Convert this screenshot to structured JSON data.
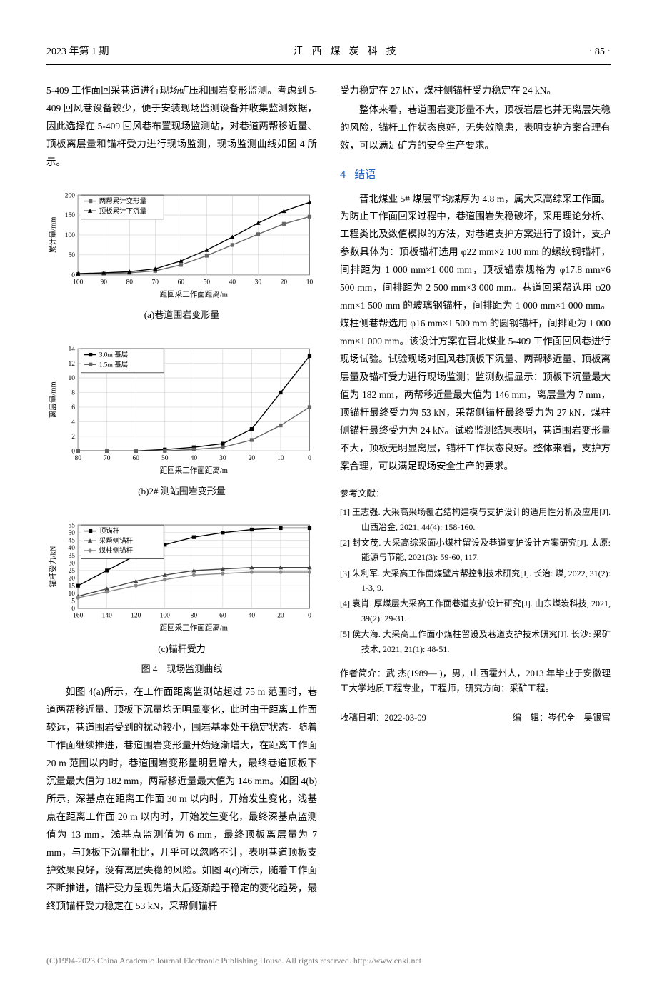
{
  "header": {
    "left": "2023 年第 1 期",
    "center": "江西煤炭科技",
    "right": "· 85 ·"
  },
  "col1": {
    "p1": "5-409 工作面回采巷道进行现场矿压和围岩变形监测。考虑到 5-409 回风巷设备较少，便于安装现场监测设备并收集监测数据，因此选择在 5-409 回风巷布置现场监测站，对巷道两帮移近量、顶板离层量和锚杆受力进行现场监测，现场监测曲线如图 4 所示。",
    "chart_a": {
      "type": "line",
      "title": "(a)巷道围岩变形量",
      "xlabel": "距回采工作面距离/m",
      "ylabel": "累计量/mm",
      "xlim": [
        100,
        10
      ],
      "ylim": [
        0,
        200
      ],
      "ytick_step": 50,
      "xticks": [
        100,
        90,
        80,
        70,
        60,
        50,
        40,
        30,
        20,
        10
      ],
      "legend": [
        "两帮累计变形量",
        "顶板累计下沉量"
      ],
      "series": [
        {
          "name": "两帮累计变形量",
          "color": "#666666",
          "marker": "square",
          "x": [
            100,
            90,
            80,
            70,
            60,
            50,
            40,
            30,
            20,
            10
          ],
          "y": [
            2,
            3,
            5,
            10,
            25,
            48,
            75,
            102,
            128,
            146
          ]
        },
        {
          "name": "顶板累计下沉量",
          "color": "#000000",
          "marker": "triangle",
          "x": [
            100,
            90,
            80,
            70,
            60,
            50,
            40,
            30,
            20,
            10
          ],
          "y": [
            3,
            5,
            8,
            15,
            35,
            62,
            95,
            130,
            160,
            182
          ]
        }
      ],
      "grid_color": "#cccccc",
      "background": "#ffffff",
      "axis_fontsize": 9,
      "label_fontsize": 10
    },
    "chart_b": {
      "type": "line",
      "title": "(b)2# 测站围岩变形量",
      "xlabel": "距回采工作面距离/m",
      "ylabel": "离层量/mm",
      "xlim": [
        80,
        0
      ],
      "ylim": [
        0,
        14
      ],
      "ytick_step": 2,
      "xticks": [
        80,
        70,
        60,
        50,
        40,
        30,
        20,
        10,
        0
      ],
      "legend": [
        "3.0m 基层",
        "1.5m 基层"
      ],
      "series": [
        {
          "name": "3.0m 基层",
          "color": "#000000",
          "marker": "square",
          "x": [
            80,
            70,
            60,
            50,
            40,
            30,
            20,
            10,
            0
          ],
          "y": [
            0,
            0,
            0,
            0.2,
            0.5,
            1,
            3,
            8,
            13
          ]
        },
        {
          "name": "1.5m 基层",
          "color": "#666666",
          "marker": "square",
          "x": [
            80,
            70,
            60,
            50,
            40,
            30,
            20,
            10,
            0
          ],
          "y": [
            0,
            0,
            0,
            0,
            0.2,
            0.5,
            1.5,
            3.5,
            6
          ]
        }
      ],
      "grid_color": "#cccccc",
      "background": "#ffffff",
      "axis_fontsize": 9,
      "label_fontsize": 10
    },
    "chart_c": {
      "type": "line",
      "title": "(c)锚杆受力",
      "xlabel": "距回采工作面距离/m",
      "ylabel": "锚杆受力/kN",
      "xlim": [
        160,
        0
      ],
      "ylim": [
        0,
        55
      ],
      "ytick_step": 5,
      "xticks": [
        160,
        140,
        120,
        100,
        80,
        60,
        40,
        20,
        0
      ],
      "legend": [
        "顶锚杆",
        "采帮侧锚杆",
        "煤柱侧锚杆"
      ],
      "series": [
        {
          "name": "顶锚杆",
          "color": "#000000",
          "marker": "square",
          "x": [
            160,
            140,
            120,
            100,
            80,
            60,
            40,
            20,
            0
          ],
          "y": [
            15,
            25,
            35,
            42,
            47,
            50,
            52,
            53,
            53
          ]
        },
        {
          "name": "采帮侧锚杆",
          "color": "#444444",
          "marker": "triangle",
          "x": [
            160,
            140,
            120,
            100,
            80,
            60,
            40,
            20,
            0
          ],
          "y": [
            8,
            13,
            18,
            22,
            25,
            26,
            27,
            27,
            27
          ]
        },
        {
          "name": "煤柱侧锚杆",
          "color": "#888888",
          "marker": "circle",
          "x": [
            160,
            140,
            120,
            100,
            80,
            60,
            40,
            20,
            0
          ],
          "y": [
            7,
            11,
            15,
            19,
            22,
            23,
            24,
            24,
            24
          ]
        }
      ],
      "grid_color": "#cccccc",
      "background": "#ffffff",
      "axis_fontsize": 9,
      "label_fontsize": 10
    },
    "fig_caption": "图 4　现场监测曲线",
    "p2": "如图 4(a)所示，在工作面距离监测站超过 75 m 范围时，巷道两帮移近量、顶板下沉量均无明显变化，此时由于距离工作面较远，巷道围岩受到的扰动较小，围岩基本处于稳定状态。随着工作面继续推进，巷道围岩变形量开始逐渐增大，在距离工作面 20 m 范围以内时，巷道围岩变形量明显增大，最终巷道顶板下沉量最大值为 182 mm，两帮移近量最大值为 146 mm。如图 4(b)所示，深基点在距离工作面 30 m 以内时，开始发生变化，浅基点在距离工作面 20 m 以内时，开始发生变化，最终深基点监测值为 13 mm，浅基点监测值为 6 mm，最终顶板离层量为 7 mm，与顶板下沉量相比，几乎可以忽略不计，表明巷道顶板支护效果良好，没有离层失稳的风险。如图 4(c)所示，随着工作面不断推进，锚杆受力呈现先增大后逐渐趋于稳定的变化趋势，最终顶锚杆受力稳定在 53 kN，采帮侧锚杆"
  },
  "col2": {
    "p1": "受力稳定在 27 kN，煤柱侧锚杆受力稳定在 24 kN。",
    "p2": "整体来看，巷道围岩变形量不大，顶板岩层也并无离层失稳的风险，锚杆工作状态良好，无失效隐患，表明支护方案合理有效，可以满足矿方的安全生产要求。",
    "sec_num": "4",
    "sec_title": "结语",
    "p3": "晋北煤业 5# 煤层平均煤厚为 4.8 m，属大采高综采工作面。为防止工作面回采过程中，巷道围岩失稳破坏，采用理论分析、工程类比及数值模拟的方法，对巷道支护方案进行了设计，支护参数具体为：顶板锚杆选用 φ22 mm×2 100 mm 的螺纹钢锚杆，间排距为 1 000 mm×1 000 mm，顶板锚索规格为 φ17.8 mm×6 500 mm，间排距为 2 500 mm×3 000 mm。巷道回采帮选用 φ20 mm×1 500 mm 的玻璃钢锚杆，间排距为 1 000 mm×1 000 mm。煤柱侧巷帮选用 φ16 mm×1 500 mm 的圆钢锚杆，间排距为 1 000 mm×1 000 mm。该设计方案在晋北煤业 5-409 工作面回风巷进行现场试验。试验现场对回风巷顶板下沉量、两帮移近量、顶板离层量及锚杆受力进行现场监测；监测数据显示：顶板下沉量最大值为 182 mm，两帮移近量最大值为 146 mm，离层量为 7 mm，顶锚杆最终受力为 53 kN，采帮侧锚杆最终受力为 27 kN，煤柱侧锚杆最终受力为 24 kN。试验监测结果表明，巷道围岩变形量不大，顶板无明显离层，锚杆工作状态良好。整体来看，支护方案合理，可以满足现场安全生产的要求。",
    "refs_label": "参考文献：",
    "refs": [
      "[1] 王志强. 大采高采场覆岩结构建模与支护设计的适用性分析及应用[J]. 山西冶金, 2021, 44(4): 158-160.",
      "[2] 封文茂. 大采高综采面小煤柱留设及巷道支护设计方案研究[J]. 太原: 能源与节能, 2021(3): 59-60, 117.",
      "[3] 朱利军. 大采高工作面煤壁片帮控制技术研究[J]. 长治: 煤, 2022, 31(2): 1-3, 9.",
      "[4] 袁肖. 厚煤层大采高工作面巷道支护设计研究[J]. 山东煤炭科技, 2021, 39(2): 29-31.",
      "[5] 侯大海. 大采高工作面小煤柱留设及巷道支护技术研究[J]. 长沙: 采矿技术, 2021, 21(1): 48-51."
    ],
    "author": "作者简介：武 杰(1989— )，男，山西霍州人，2013 年毕业于安徽理工大学地质工程专业，工程师，研究方向：采矿工程。",
    "date": "收稿日期：2022-03-09",
    "editor": "编　辑：岑代全　吴银富"
  },
  "footer": "(C)1994-2023 China Academic Journal Electronic Publishing House. All rights reserved.    http://www.cnki.net"
}
